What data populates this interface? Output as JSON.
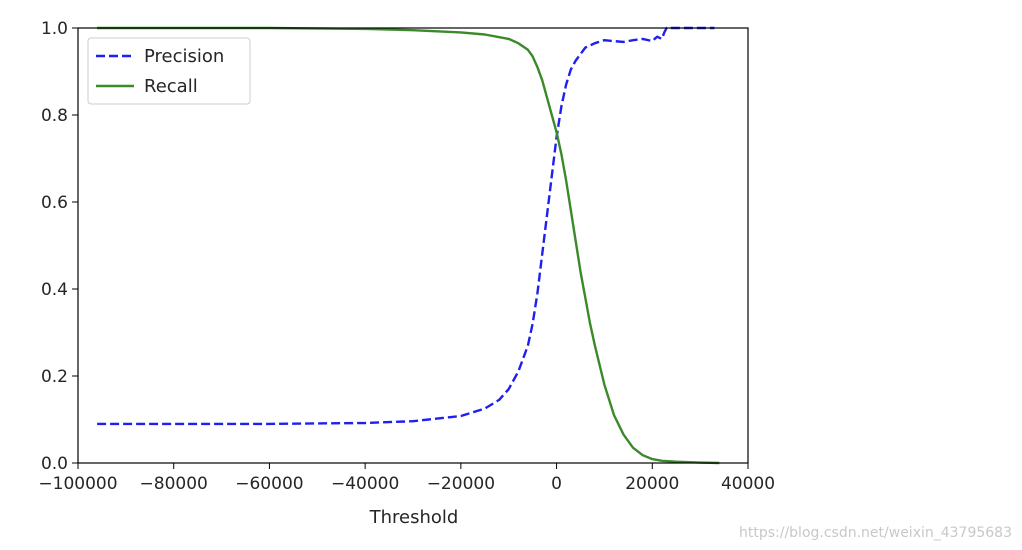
{
  "chart_data": {
    "type": "line",
    "title": "",
    "xlabel": "Threshold",
    "ylabel": "",
    "xlim": [
      -100000,
      40000
    ],
    "ylim": [
      0,
      1
    ],
    "grid": false,
    "legend_position": "top-left",
    "x_ticks": [
      -100000,
      -80000,
      -60000,
      -40000,
      -20000,
      0,
      20000,
      40000
    ],
    "x_tick_labels": [
      "−100000",
      "−80000",
      "−60000",
      "−40000",
      "−20000",
      "0",
      "20000",
      "40000"
    ],
    "y_ticks": [
      0,
      0.2,
      0.4,
      0.6,
      0.8,
      1.0
    ],
    "y_tick_labels": [
      "0.0",
      "0.2",
      "0.4",
      "0.6",
      "0.8",
      "1.0"
    ],
    "series": [
      {
        "name": "Precision",
        "color": "#1f1ff0",
        "style": "dashed",
        "x": [
          -96000,
          -60000,
          -40000,
          -30000,
          -20000,
          -15000,
          -12000,
          -10000,
          -8000,
          -6000,
          -5000,
          -4000,
          -3000,
          -2000,
          -1000,
          0,
          1000,
          2000,
          3000,
          4000,
          5000,
          6000,
          8000,
          10000,
          12000,
          14000,
          16000,
          18000,
          20000,
          21000,
          22000,
          22500,
          23000,
          28000,
          33000
        ],
        "y": [
          0.09,
          0.09,
          0.092,
          0.096,
          0.108,
          0.125,
          0.145,
          0.17,
          0.21,
          0.27,
          0.32,
          0.39,
          0.48,
          0.57,
          0.66,
          0.75,
          0.82,
          0.87,
          0.905,
          0.925,
          0.94,
          0.955,
          0.965,
          0.972,
          0.97,
          0.968,
          0.972,
          0.975,
          0.97,
          0.98,
          0.975,
          0.99,
          1.0,
          1.0,
          1.0
        ]
      },
      {
        "name": "Recall",
        "color": "#3a8a2a",
        "style": "solid",
        "x": [
          -96000,
          -60000,
          -40000,
          -30000,
          -20000,
          -15000,
          -10000,
          -8000,
          -6000,
          -5000,
          -4000,
          -3000,
          -2000,
          -1000,
          0,
          1000,
          2000,
          3000,
          4000,
          5000,
          6000,
          7000,
          8000,
          10000,
          12000,
          14000,
          16000,
          18000,
          20000,
          22000,
          25000,
          30000,
          34000
        ],
        "y": [
          1.0,
          1.0,
          0.998,
          0.995,
          0.99,
          0.985,
          0.975,
          0.965,
          0.95,
          0.935,
          0.91,
          0.88,
          0.84,
          0.8,
          0.76,
          0.71,
          0.65,
          0.58,
          0.51,
          0.44,
          0.38,
          0.32,
          0.27,
          0.18,
          0.11,
          0.065,
          0.035,
          0.018,
          0.009,
          0.005,
          0.003,
          0.001,
          0.0
        ]
      }
    ]
  },
  "watermark": "https://blog.csdn.net/weixin_43795683"
}
